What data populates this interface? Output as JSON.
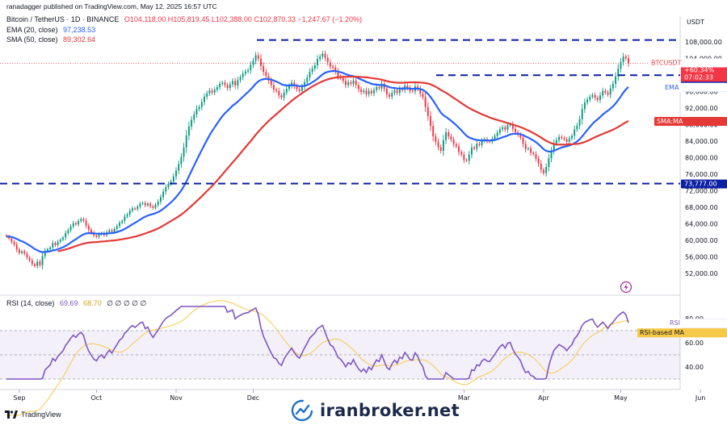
{
  "header": {
    "published": "ranadagger published on TradingView.com, May 12, 2025 16:57 UTC",
    "symbol": "Bitcoin / TetherUS · 1D · BINANCE",
    "ohlc": "O104,118.00 H105,819.45 L102,388.00 C102,870.33 −1,247.67 (−1.20%)",
    "ema_label": "EMA (20, close)",
    "ema_value": "97,238.53",
    "sma_label": "SMA (50, close)",
    "sma_value": "89,302.64",
    "rsi_label": "RSI (14, close)",
    "rsi_value": "69.69",
    "rsi_ma_value": "68.70",
    "rsi_extra": "∅ ∅ ∅ ∅ ∅"
  },
  "colors": {
    "up": "#089981",
    "down": "#f23645",
    "ema": "#2962ff",
    "sma": "#e53935",
    "rsi": "#7e57c2",
    "rsi_ma": "#f7c948",
    "level": "#0d1fa3",
    "price_tag": "#f23645",
    "ema_tag": "#2962ff",
    "sma_tag": "#e53935",
    "rsima_tag": "#f7c948"
  },
  "icons": {
    "tradingview": "tradingview-logo-icon",
    "brand": "chart-line-logo-icon",
    "bolt": "lightning-icon"
  },
  "brand_text": "iranbroker.net",
  "tv_text": "TradingView",
  "chart_data": [
    {
      "type": "candlestick",
      "title": "Bitcoin / TetherUS · 1D · BINANCE",
      "ylabel": "USDT",
      "ylim": [
        49500,
        110000
      ],
      "y_ticks": [
        "52,000.00",
        "56,000.00",
        "60,000.00",
        "64,000.00",
        "68,000.00",
        "72,000.00",
        "76,000.00",
        "80,000.00",
        "84,000.00",
        "88,000.00",
        "92,000.00",
        "96,000.00",
        "100,000.00",
        "104,000.00",
        "108,000.00"
      ],
      "x_ticks": [
        "Sep",
        "Oct",
        "Nov",
        "Dec",
        "Mar",
        "Apr",
        "May",
        "Jun"
      ],
      "levels": [
        108500,
        100000,
        73777
      ],
      "tags": {
        "symbol": "BTCUSDT",
        "price": "102,870.33",
        "change": "+60.34%",
        "countdown": "07:02:33",
        "level_100k": "100,000.00",
        "ema_name": "EMA",
        "ema_value": "97,238.53",
        "sma_name": "SMA:MA",
        "sma_value": "89,302.64",
        "level_73777": "73,777.00"
      },
      "close": [
        61000,
        60500,
        59700,
        59000,
        57800,
        57000,
        57400,
        56800,
        55900,
        55200,
        54300,
        53800,
        54900,
        54000,
        56200,
        57500,
        57900,
        58300,
        59400,
        58900,
        59700,
        60200,
        60700,
        61800,
        62500,
        63400,
        64200,
        63900,
        64700,
        65200,
        64800,
        63600,
        62600,
        61900,
        61200,
        60900,
        61500,
        61800,
        61300,
        62000,
        62500,
        62100,
        62800,
        63500,
        64300,
        64700,
        65800,
        66300,
        67200,
        67800,
        67600,
        68200,
        68900,
        69100,
        68500,
        68900,
        68300,
        67900,
        68600,
        69400,
        70500,
        71800,
        72900,
        73700,
        74300,
        75500,
        76900,
        78500,
        80200,
        82500,
        85400,
        87600,
        89200,
        90500,
        91800,
        92300,
        93500,
        94800,
        95600,
        96300,
        95800,
        96500,
        97100,
        97900,
        98200,
        97600,
        96900,
        97800,
        98600,
        97500,
        98800,
        99500,
        100400,
        100900,
        101200,
        102500,
        103500,
        104800,
        104000,
        102200,
        100800,
        99800,
        98700,
        97600,
        96500,
        96200,
        95100,
        94600,
        95800,
        96700,
        97400,
        98200,
        97300,
        96600,
        96200,
        97200,
        98300,
        99400,
        100800,
        101600,
        102400,
        103900,
        104500,
        105200,
        104200,
        103100,
        102100,
        101800,
        100900,
        99700,
        99300,
        98600,
        97600,
        98300,
        97900,
        98700,
        97600,
        96600,
        95900,
        96300,
        95400,
        96200,
        95600,
        96400,
        97100,
        96800,
        97900,
        96700,
        95300,
        94800,
        95700,
        96300,
        95700,
        96700,
        96400,
        97500,
        96900,
        96200,
        96100,
        97300,
        96700,
        95500,
        94700,
        92300,
        90100,
        87700,
        85200,
        83900,
        82600,
        81700,
        84300,
        86200,
        85200,
        84400,
        83300,
        82800,
        81400,
        80800,
        79500,
        79300,
        80800,
        82500,
        82200,
        83400,
        83100,
        84100,
        84500,
        84000,
        83900,
        84600,
        85300,
        86100,
        86900,
        87400,
        86800,
        87900,
        88100,
        87000,
        86200,
        85600,
        84900,
        83400,
        82100,
        82300,
        81200,
        80900,
        79800,
        78600,
        77100,
        76300,
        77800,
        79900,
        81700,
        83500,
        84300,
        85100,
        84800,
        84500,
        83900,
        84700,
        85300,
        86900,
        87800,
        89300,
        91800,
        93400,
        94100,
        94800,
        95200,
        94500,
        94000,
        95100,
        96200,
        95800,
        95300,
        96800,
        97900,
        99700,
        101600,
        103200,
        104500,
        104100,
        102870
      ],
      "rsi": {
        "ylim": [
          30,
          90
        ],
        "ticks": [
          "40.00",
          "60.00",
          "80.00"
        ],
        "bands": [
          70,
          50,
          30
        ]
      }
    }
  ]
}
